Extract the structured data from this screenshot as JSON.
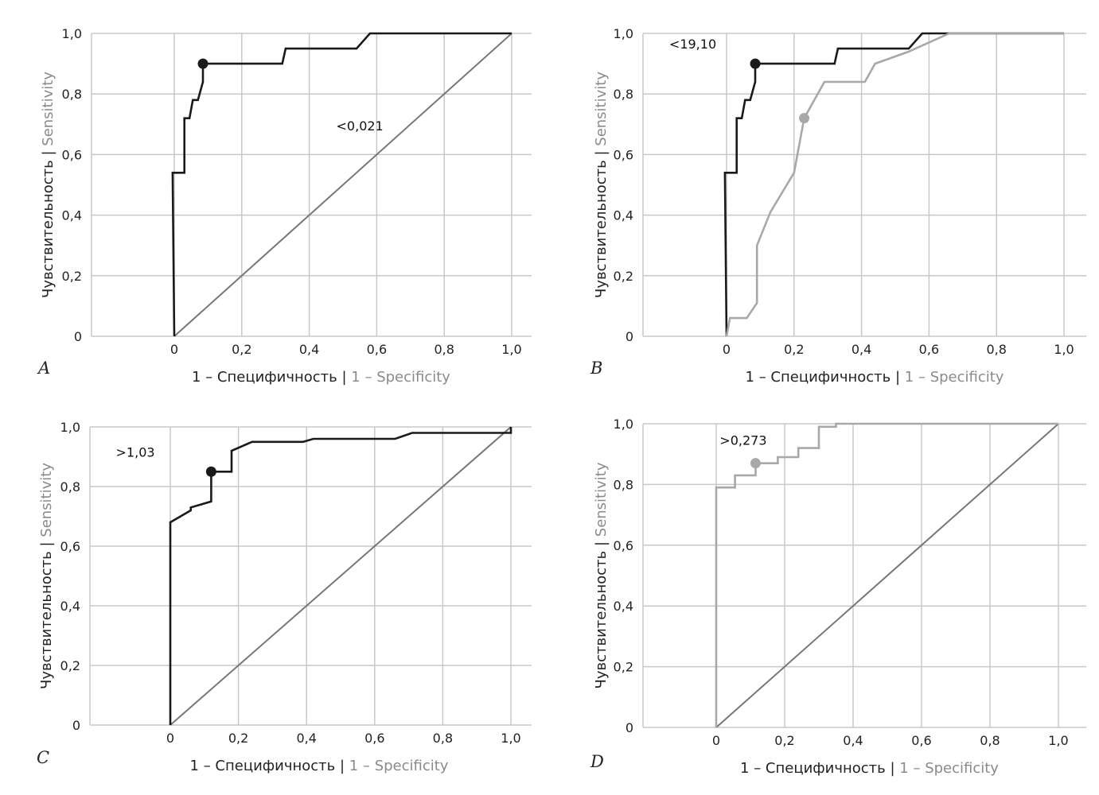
{
  "chart_data": [
    {
      "type": "line",
      "panel_letter": "A",
      "xlabel_ru": "1 – Специфичность",
      "xlabel_en": "1 – Specificity",
      "ylabel_ru": "Чувствительность",
      "ylabel_en": "Sensitivity",
      "separator": " | ",
      "x_ticks": [
        "0",
        "0,2",
        "0,4",
        "0,6",
        "0,8",
        "1,0"
      ],
      "y_ticks": [
        "0",
        "0,2",
        "0,4",
        "0,6",
        "0,8",
        "1,0"
      ],
      "xlim": [
        -0.24,
        1.06
      ],
      "ylim": [
        0,
        1.0
      ],
      "grid": true,
      "diagonal": true,
      "annotation": "<0,021",
      "annotation_pos": [
        0.48,
        0.68
      ],
      "series": [
        {
          "name": "ROC",
          "color": "#1a1a1a",
          "points": [
            [
              0,
              0
            ],
            [
              -0.005,
              0.54
            ],
            [
              0.03,
              0.54
            ],
            [
              0.03,
              0.72
            ],
            [
              0.045,
              0.72
            ],
            [
              0.055,
              0.78
            ],
            [
              0.07,
              0.78
            ],
            [
              0.085,
              0.84
            ],
            [
              0.085,
              0.9
            ],
            [
              0.32,
              0.9
            ],
            [
              0.33,
              0.95
            ],
            [
              0.54,
              0.95
            ],
            [
              0.58,
              1.0
            ],
            [
              1.0,
              1.0
            ]
          ],
          "marker": [
            0.085,
            0.9
          ]
        }
      ]
    },
    {
      "type": "line",
      "panel_letter": "B",
      "xlabel_ru": "1 – Специфичность",
      "xlabel_en": "1 – Specificity",
      "ylabel_ru": "Чувствительность",
      "ylabel_en": "Sensitivity",
      "separator": " | ",
      "x_ticks": [
        "0",
        "0,2",
        "0,4",
        "0,6",
        "0,8",
        "1,0"
      ],
      "y_ticks": [
        "0",
        "0,2",
        "0,4",
        "0,6",
        "0,8",
        "1,0"
      ],
      "xlim": [
        -0.24,
        1.06
      ],
      "ylim": [
        0,
        1.0
      ],
      "grid": true,
      "diagonal": false,
      "annotation": "<19,10",
      "annotation_pos": [
        -0.17,
        0.95
      ],
      "series": [
        {
          "name": "ROC 1",
          "color": "#1a1a1a",
          "points": [
            [
              0,
              0
            ],
            [
              -0.005,
              0.54
            ],
            [
              0.03,
              0.54
            ],
            [
              0.03,
              0.72
            ],
            [
              0.045,
              0.72
            ],
            [
              0.055,
              0.78
            ],
            [
              0.07,
              0.78
            ],
            [
              0.085,
              0.84
            ],
            [
              0.085,
              0.9
            ],
            [
              0.32,
              0.9
            ],
            [
              0.33,
              0.95
            ],
            [
              0.54,
              0.95
            ],
            [
              0.58,
              1.0
            ],
            [
              1.0,
              1.0
            ]
          ],
          "marker": [
            0.085,
            0.9
          ]
        },
        {
          "name": "ROC 2",
          "color": "#a8a8a8",
          "points": [
            [
              0,
              0
            ],
            [
              0.01,
              0.06
            ],
            [
              0.06,
              0.06
            ],
            [
              0.09,
              0.11
            ],
            [
              0.09,
              0.3
            ],
            [
              0.13,
              0.41
            ],
            [
              0.2,
              0.54
            ],
            [
              0.23,
              0.72
            ],
            [
              0.29,
              0.84
            ],
            [
              0.41,
              0.84
            ],
            [
              0.44,
              0.9
            ],
            [
              0.54,
              0.94
            ],
            [
              0.66,
              1.0
            ],
            [
              1.0,
              1.0
            ]
          ],
          "marker": [
            0.23,
            0.72
          ]
        }
      ]
    },
    {
      "type": "line",
      "panel_letter": "C",
      "xlabel_ru": "1 – Специфичность",
      "xlabel_en": "1 – Specificity",
      "ylabel_ru": "Чувствительность",
      "ylabel_en": "Sensitivity",
      "separator": " | ",
      "x_ticks": [
        "0",
        "0,2",
        "0,4",
        "0,6",
        "0,8",
        "1,0"
      ],
      "y_ticks": [
        "0",
        "0,2",
        "0,4",
        "0,6",
        "0,8",
        "1,0"
      ],
      "xlim": [
        -0.24,
        1.06
      ],
      "ylim": [
        0,
        1.0
      ],
      "grid": true,
      "diagonal": true,
      "annotation": ">1,03",
      "annotation_pos": [
        -0.16,
        0.9
      ],
      "series": [
        {
          "name": "ROC",
          "color": "#1a1a1a",
          "points": [
            [
              0,
              0
            ],
            [
              0,
              0.68
            ],
            [
              0.06,
              0.72
            ],
            [
              0.06,
              0.73
            ],
            [
              0.12,
              0.75
            ],
            [
              0.12,
              0.85
            ],
            [
              0.18,
              0.85
            ],
            [
              0.18,
              0.92
            ],
            [
              0.24,
              0.95
            ],
            [
              0.39,
              0.95
            ],
            [
              0.42,
              0.96
            ],
            [
              0.66,
              0.96
            ],
            [
              0.71,
              0.98
            ],
            [
              1.0,
              0.98
            ],
            [
              1.0,
              1.0
            ]
          ],
          "marker": [
            0.12,
            0.85
          ]
        }
      ]
    },
    {
      "type": "line",
      "panel_letter": "D",
      "xlabel_ru": "1 – Специфичность",
      "xlabel_en": "1 – Specificity",
      "ylabel_ru": "Чувствительность",
      "ylabel_en": "Sensitivity",
      "separator": " | ",
      "x_ticks": [
        "0",
        "0,2",
        "0,4",
        "0,6",
        "0,8",
        "1,0"
      ],
      "y_ticks": [
        "0",
        "0,2",
        "0,4",
        "0,6",
        "0,8",
        "1,0"
      ],
      "xlim": [
        -0.24,
        1.06
      ],
      "ylim": [
        0,
        1.0
      ],
      "grid": true,
      "diagonal": true,
      "annotation": ">0,273",
      "annotation_pos": [
        0.01,
        0.93
      ],
      "series": [
        {
          "name": "ROC",
          "color": "#a8a8a8",
          "points": [
            [
              0,
              0
            ],
            [
              0,
              0.79
            ],
            [
              0.055,
              0.79
            ],
            [
              0.055,
              0.83
            ],
            [
              0.115,
              0.83
            ],
            [
              0.115,
              0.87
            ],
            [
              0.18,
              0.87
            ],
            [
              0.18,
              0.89
            ],
            [
              0.24,
              0.89
            ],
            [
              0.24,
              0.92
            ],
            [
              0.3,
              0.92
            ],
            [
              0.3,
              0.99
            ],
            [
              0.35,
              0.99
            ],
            [
              0.35,
              1.0
            ],
            [
              1.0,
              1.0
            ]
          ],
          "marker": [
            0.115,
            0.87
          ]
        }
      ]
    }
  ]
}
